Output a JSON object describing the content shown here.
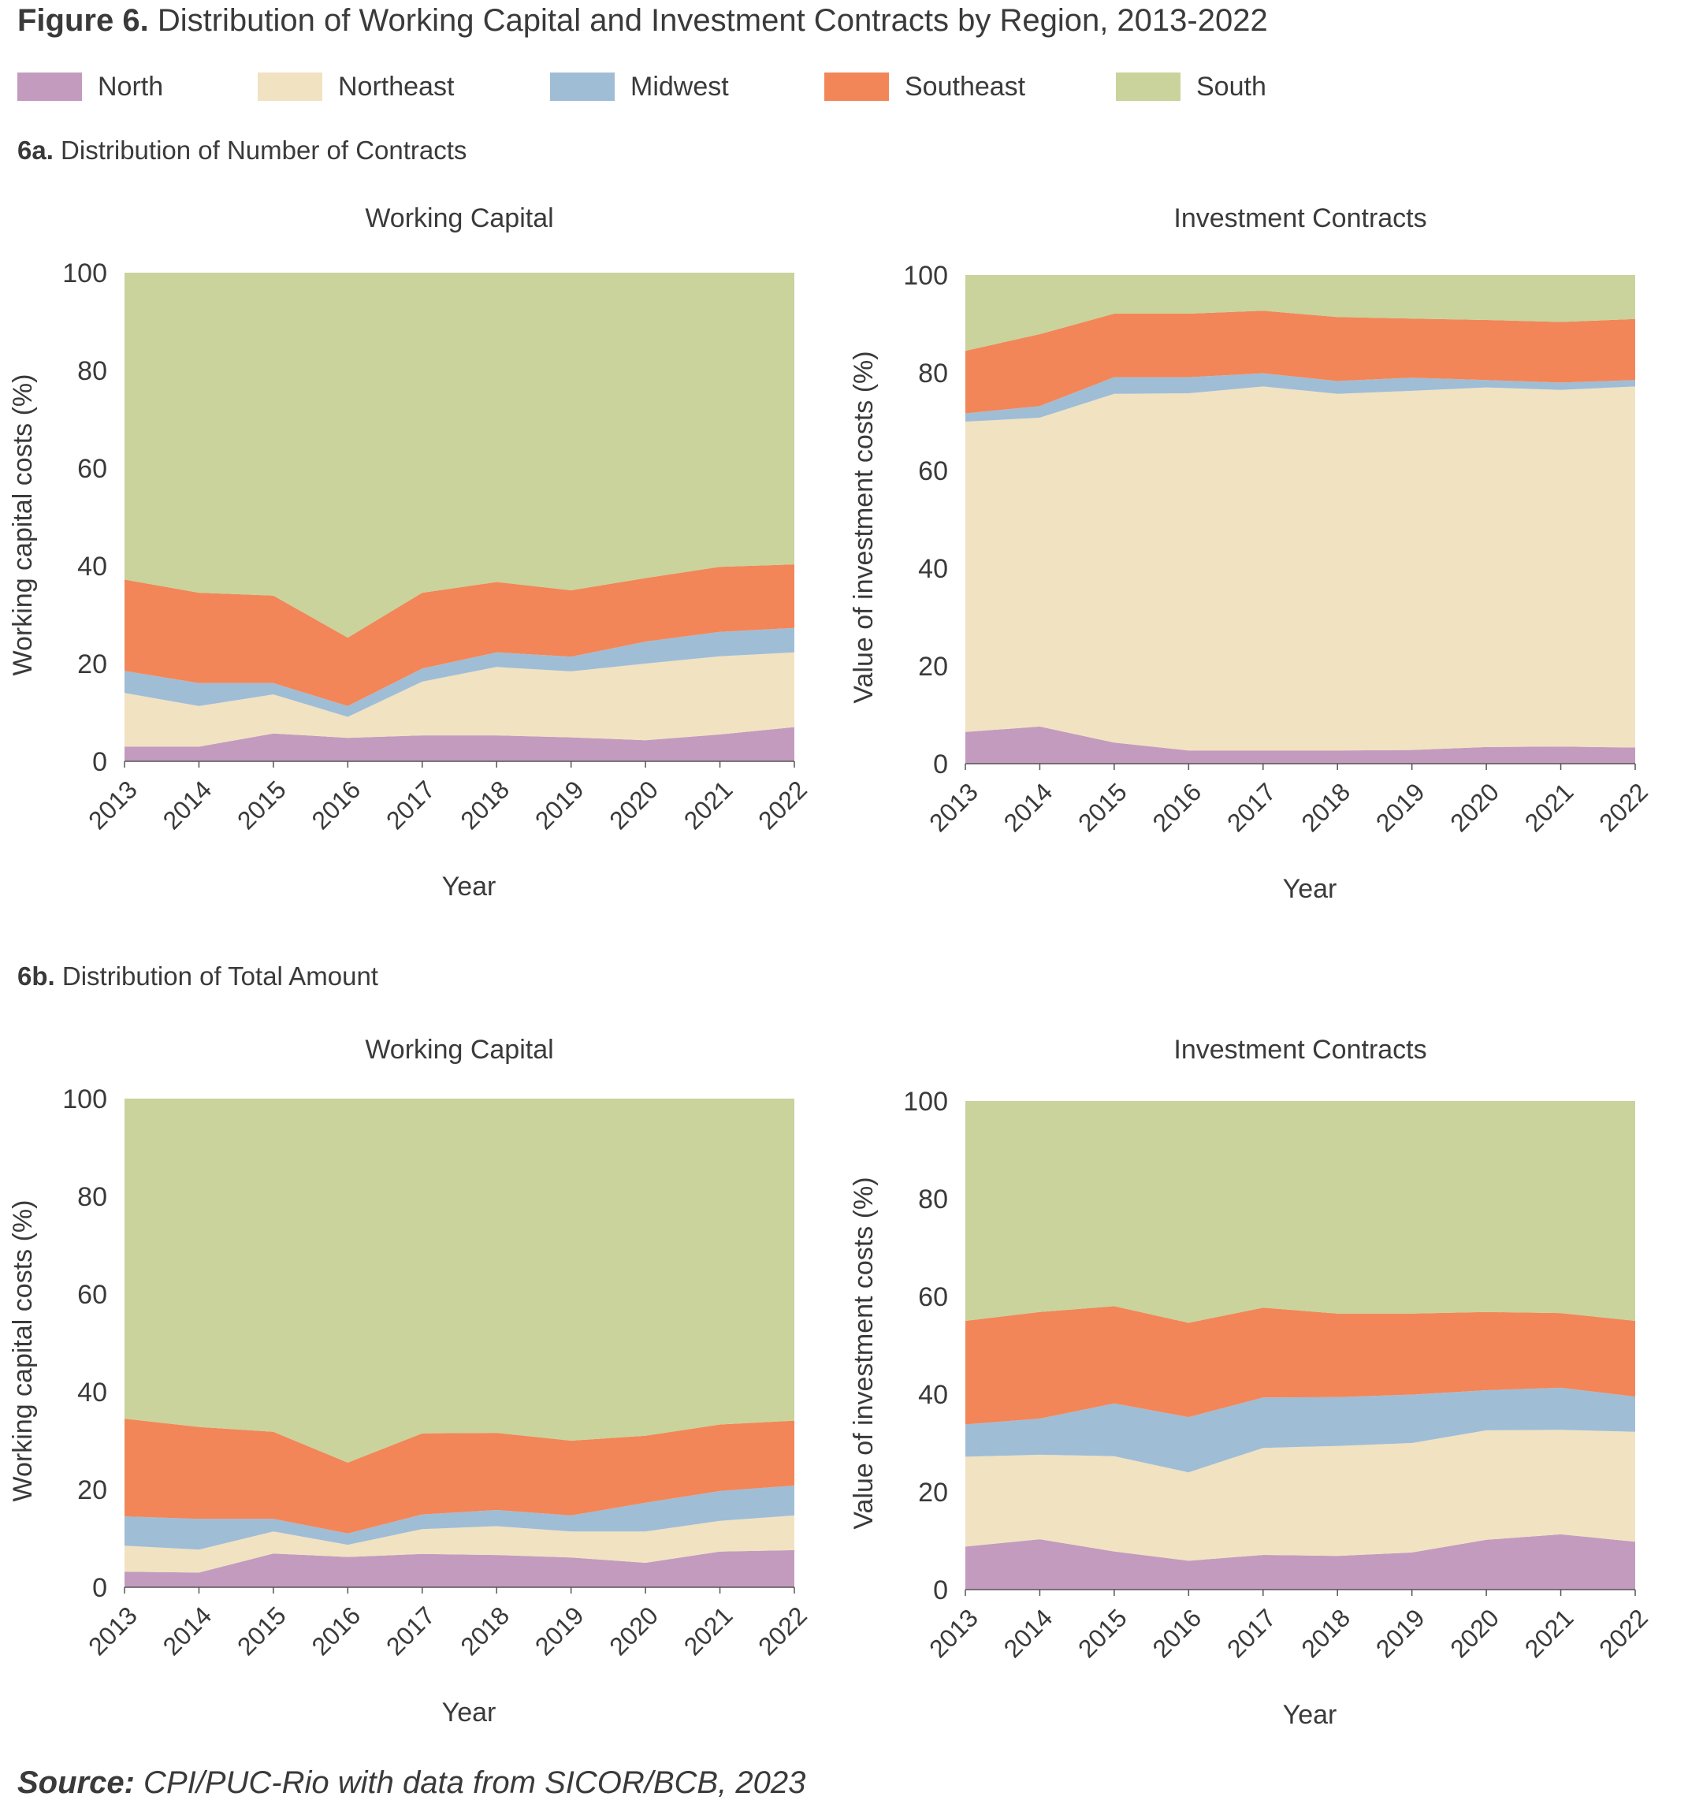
{
  "figure": {
    "title_bold": "Figure 6.",
    "title_rest": " Distribution of Working Capital and Investment Contracts by Region, 2013-2022"
  },
  "legend": [
    {
      "label": "North",
      "color": "#c39bbe"
    },
    {
      "label": "Northeast",
      "color": "#f1e2c2"
    },
    {
      "label": "Midwest",
      "color": "#a0bdd6"
    },
    {
      "label": "Southeast",
      "color": "#f28658"
    },
    {
      "label": "South",
      "color": "#c9d39b"
    }
  ],
  "sections": [
    {
      "bold": "6a.",
      "rest": " Distribution of Number of Contracts"
    },
    {
      "bold": "6b.",
      "rest": " Distribution of Total Amount"
    }
  ],
  "source": {
    "bold": "Source:",
    "rest": " CPI/PUC-Rio with data from SICOR/BCB, 2023"
  },
  "chart_data": [
    {
      "type": "area",
      "stacked": true,
      "section": "6a",
      "title": "Working Capital",
      "xlabel": "Year",
      "ylabel": "Working capital costs (%)",
      "ylim": [
        0,
        100
      ],
      "yticks": [
        0,
        20,
        40,
        60,
        80,
        100
      ],
      "x": [
        "2013",
        "2014",
        "2015",
        "2016",
        "2017",
        "2018",
        "2019",
        "2020",
        "2021",
        "2022"
      ],
      "series": [
        {
          "name": "North",
          "values": [
            3,
            3,
            5.7,
            4.8,
            5.3,
            5.3,
            4.9,
            4.3,
            5.5,
            7
          ]
        },
        {
          "name": "Northeast",
          "values": [
            11,
            8.3,
            8,
            4.3,
            11,
            14,
            13.5,
            15.7,
            16,
            15.3
          ]
        },
        {
          "name": "Midwest",
          "values": [
            4.5,
            4.7,
            2.3,
            2.2,
            2.7,
            3,
            3,
            4.5,
            5,
            5
          ]
        },
        {
          "name": "Southeast",
          "values": [
            18.7,
            18.5,
            17.9,
            14,
            15.5,
            14.4,
            13.6,
            13,
            13.3,
            13
          ]
        },
        {
          "name": "South",
          "values": [
            62.8,
            65.5,
            66.1,
            74.7,
            65.5,
            63.3,
            65,
            62.5,
            60.2,
            59.7
          ]
        }
      ]
    },
    {
      "type": "area",
      "stacked": true,
      "section": "6a",
      "title": "Investment Contracts",
      "xlabel": "Year",
      "ylabel": "Value of investment costs (%)",
      "ylim": [
        0,
        100
      ],
      "yticks": [
        0,
        20,
        40,
        60,
        80,
        100
      ],
      "x": [
        "2013",
        "2014",
        "2015",
        "2016",
        "2017",
        "2018",
        "2019",
        "2020",
        "2021",
        "2022"
      ],
      "series": [
        {
          "name": "North",
          "values": [
            6.5,
            7.6,
            4.3,
            2.7,
            2.7,
            2.7,
            2.8,
            3.4,
            3.5,
            3.3
          ]
        },
        {
          "name": "Northeast",
          "values": [
            63.5,
            63.2,
            71.4,
            73.1,
            74.5,
            73,
            73.5,
            73.6,
            73,
            73.9
          ]
        },
        {
          "name": "Midwest",
          "values": [
            1.7,
            2.4,
            3.4,
            3.3,
            2.7,
            2.6,
            2.7,
            1.5,
            1.5,
            1.3
          ]
        },
        {
          "name": "Southeast",
          "values": [
            12.8,
            14.7,
            13,
            13,
            12.8,
            13.1,
            12.1,
            12.3,
            12.4,
            12.5
          ]
        },
        {
          "name": "South",
          "values": [
            15.5,
            12.1,
            7.9,
            7.9,
            7.3,
            8.6,
            8.9,
            9.2,
            9.6,
            9
          ]
        }
      ]
    },
    {
      "type": "area",
      "stacked": true,
      "section": "6b",
      "title": "Working Capital",
      "xlabel": "Year",
      "ylabel": "Working capital costs (%)",
      "ylim": [
        0,
        100
      ],
      "yticks": [
        0,
        20,
        40,
        60,
        80,
        100
      ],
      "x": [
        "2013",
        "2014",
        "2015",
        "2016",
        "2017",
        "2018",
        "2019",
        "2020",
        "2021",
        "2022"
      ],
      "series": [
        {
          "name": "North",
          "values": [
            3.2,
            3,
            6.9,
            6.2,
            6.8,
            6.6,
            6.1,
            5,
            7.3,
            7.6
          ]
        },
        {
          "name": "Northeast",
          "values": [
            5.3,
            4.7,
            4.5,
            2.5,
            5.1,
            5.9,
            5.3,
            6.4,
            6.3,
            7.1
          ]
        },
        {
          "name": "Midwest",
          "values": [
            6,
            6.3,
            2.6,
            2.3,
            3,
            3.3,
            3.3,
            5.9,
            6.1,
            6.1
          ]
        },
        {
          "name": "Southeast",
          "values": [
            20,
            18.8,
            17.8,
            14.5,
            16.6,
            15.8,
            15.3,
            13.7,
            13.6,
            13.3
          ]
        },
        {
          "name": "South",
          "values": [
            65.5,
            67.2,
            68.2,
            74.5,
            68.5,
            68.4,
            70,
            69,
            66.7,
            65.9
          ]
        }
      ]
    },
    {
      "type": "area",
      "stacked": true,
      "section": "6b",
      "title": "Investment Contracts",
      "xlabel": "Year",
      "ylabel": "Value of investment costs (%)",
      "ylim": [
        0,
        100
      ],
      "yticks": [
        0,
        20,
        40,
        60,
        80,
        100
      ],
      "x": [
        "2013",
        "2014",
        "2015",
        "2016",
        "2017",
        "2018",
        "2019",
        "2020",
        "2021",
        "2022"
      ],
      "series": [
        {
          "name": "North",
          "values": [
            8.8,
            10.3,
            7.8,
            5.9,
            7.1,
            6.9,
            7.6,
            10.2,
            11.3,
            9.8
          ]
        },
        {
          "name": "Northeast",
          "values": [
            18.4,
            17.3,
            19.5,
            18.1,
            21.9,
            22.5,
            22.4,
            22.4,
            21.4,
            22.5
          ]
        },
        {
          "name": "Midwest",
          "values": [
            6.6,
            7.4,
            10.8,
            11.3,
            10.3,
            10,
            9.9,
            8.2,
            8.6,
            7.2
          ]
        },
        {
          "name": "Southeast",
          "values": [
            21.2,
            21.8,
            19.9,
            19.3,
            18.4,
            17.1,
            16.6,
            16,
            15.3,
            15.5
          ]
        },
        {
          "name": "South",
          "values": [
            45,
            43.2,
            42,
            45.4,
            42.3,
            43.5,
            43.5,
            43.2,
            43.4,
            45
          ]
        }
      ]
    }
  ]
}
